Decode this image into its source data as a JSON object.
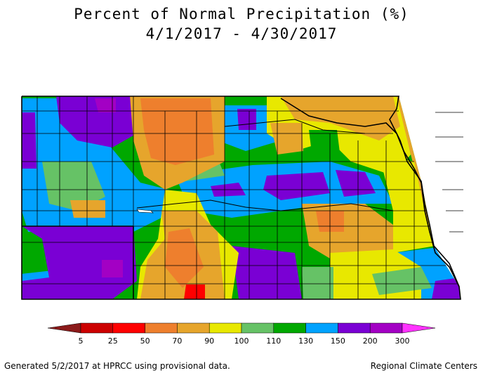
{
  "title_line1": "Percent of Normal Precipitation (%)",
  "title_line2": "4/1/2017 - 4/30/2017",
  "legend": {
    "ticks": [
      "5",
      "25",
      "50",
      "70",
      "90",
      "100",
      "110",
      "130",
      "150",
      "200",
      "300"
    ],
    "colors": [
      "#8b1a1a",
      "#cc0000",
      "#ff0000",
      "#ee7f2d",
      "#e6a52c",
      "#e8e800",
      "#66c266",
      "#00a800",
      "#00a2ff",
      "#7a00d4",
      "#a300c4",
      "#ff33ff"
    ]
  },
  "map_colors": {
    "dark_orange": "#ee7f2d",
    "orange": "#e6a52c",
    "yellow": "#e8e800",
    "light_green": "#66c266",
    "green": "#00a800",
    "blue": "#00a2ff",
    "purple": "#7a00d4",
    "magenta": "#a300c4",
    "red": "#ff0000"
  },
  "footer_left": "Generated 5/2/2017 at HPRCC using provisional data.",
  "footer_right": "Regional Climate Centers"
}
